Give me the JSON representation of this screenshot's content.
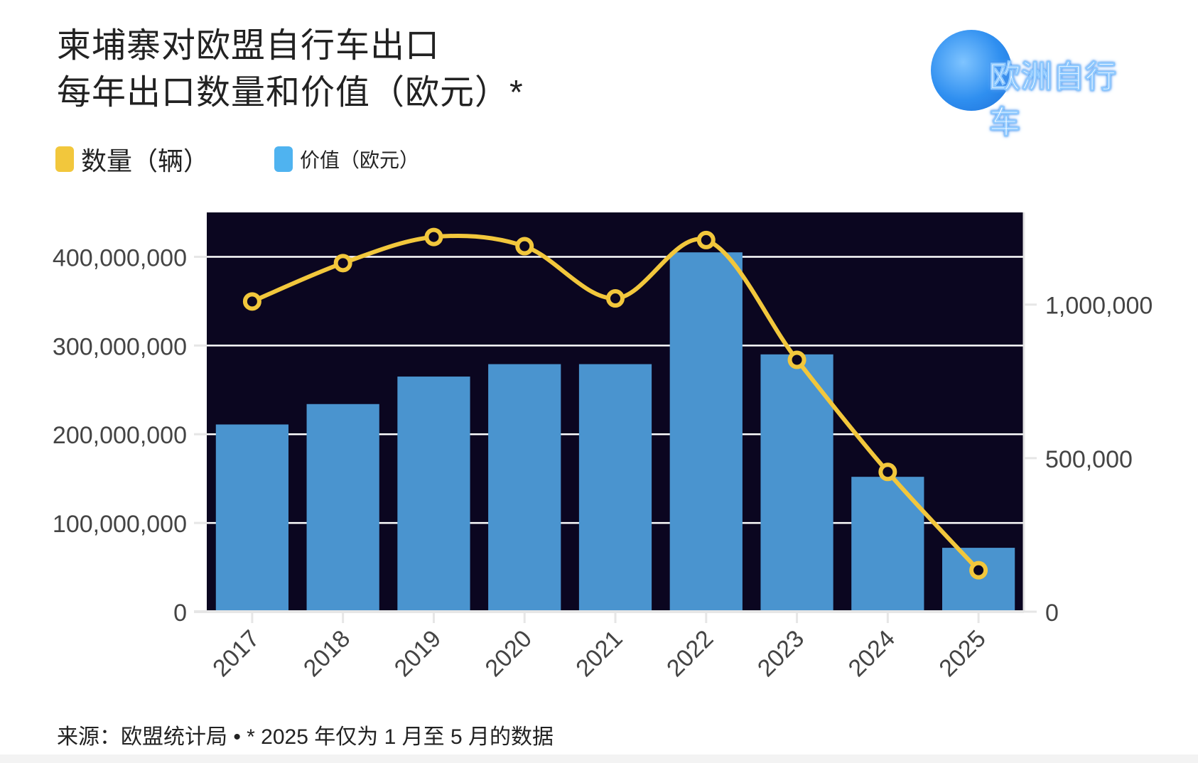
{
  "title": {
    "line1": "柬埔寨对欧盟自行车出口",
    "line2": "每年出口数量和价值（欧元）*"
  },
  "logo": {
    "text": "欧洲自行车"
  },
  "footer": {
    "text": "来源：欧盟统计局 • * 2025 年仅为 1 月至 5 月的数据"
  },
  "colors": {
    "plot_bg": "#0b0620",
    "bar": "#4a94cf",
    "line": "#f2c73c",
    "grid": "#ffffff",
    "legend_quantity": "#f2c73c",
    "legend_value": "#4fb3f0"
  },
  "chart_data": {
    "type": "bar",
    "categories": [
      "2017",
      "2018",
      "2019",
      "2020",
      "2021",
      "2022",
      "2023",
      "2024",
      "2025"
    ],
    "series": [
      {
        "name": "价值（欧元）",
        "type": "bar",
        "axis": "left",
        "values": [
          211000000,
          234000000,
          265000000,
          279000000,
          279000000,
          405000000,
          290000000,
          152000000,
          72000000
        ]
      },
      {
        "name": "数量（辆）",
        "type": "line",
        "axis": "right",
        "values": [
          1010000,
          1135000,
          1220000,
          1190000,
          1020000,
          1210000,
          820000,
          455000,
          135000
        ]
      }
    ],
    "y_left": {
      "ticks": [
        0,
        100000000,
        200000000,
        300000000,
        400000000
      ],
      "tick_labels": [
        "0",
        "100,000,000",
        "200,000,000",
        "300,000,000",
        "400,000,000"
      ],
      "range": [
        0,
        450000000
      ]
    },
    "y_right": {
      "ticks": [
        0,
        500000,
        1000000
      ],
      "tick_labels": [
        "0",
        "500,000",
        "1,000,000"
      ],
      "range": [
        0,
        1300000
      ]
    },
    "grid": true,
    "legend_position": "top-left"
  }
}
